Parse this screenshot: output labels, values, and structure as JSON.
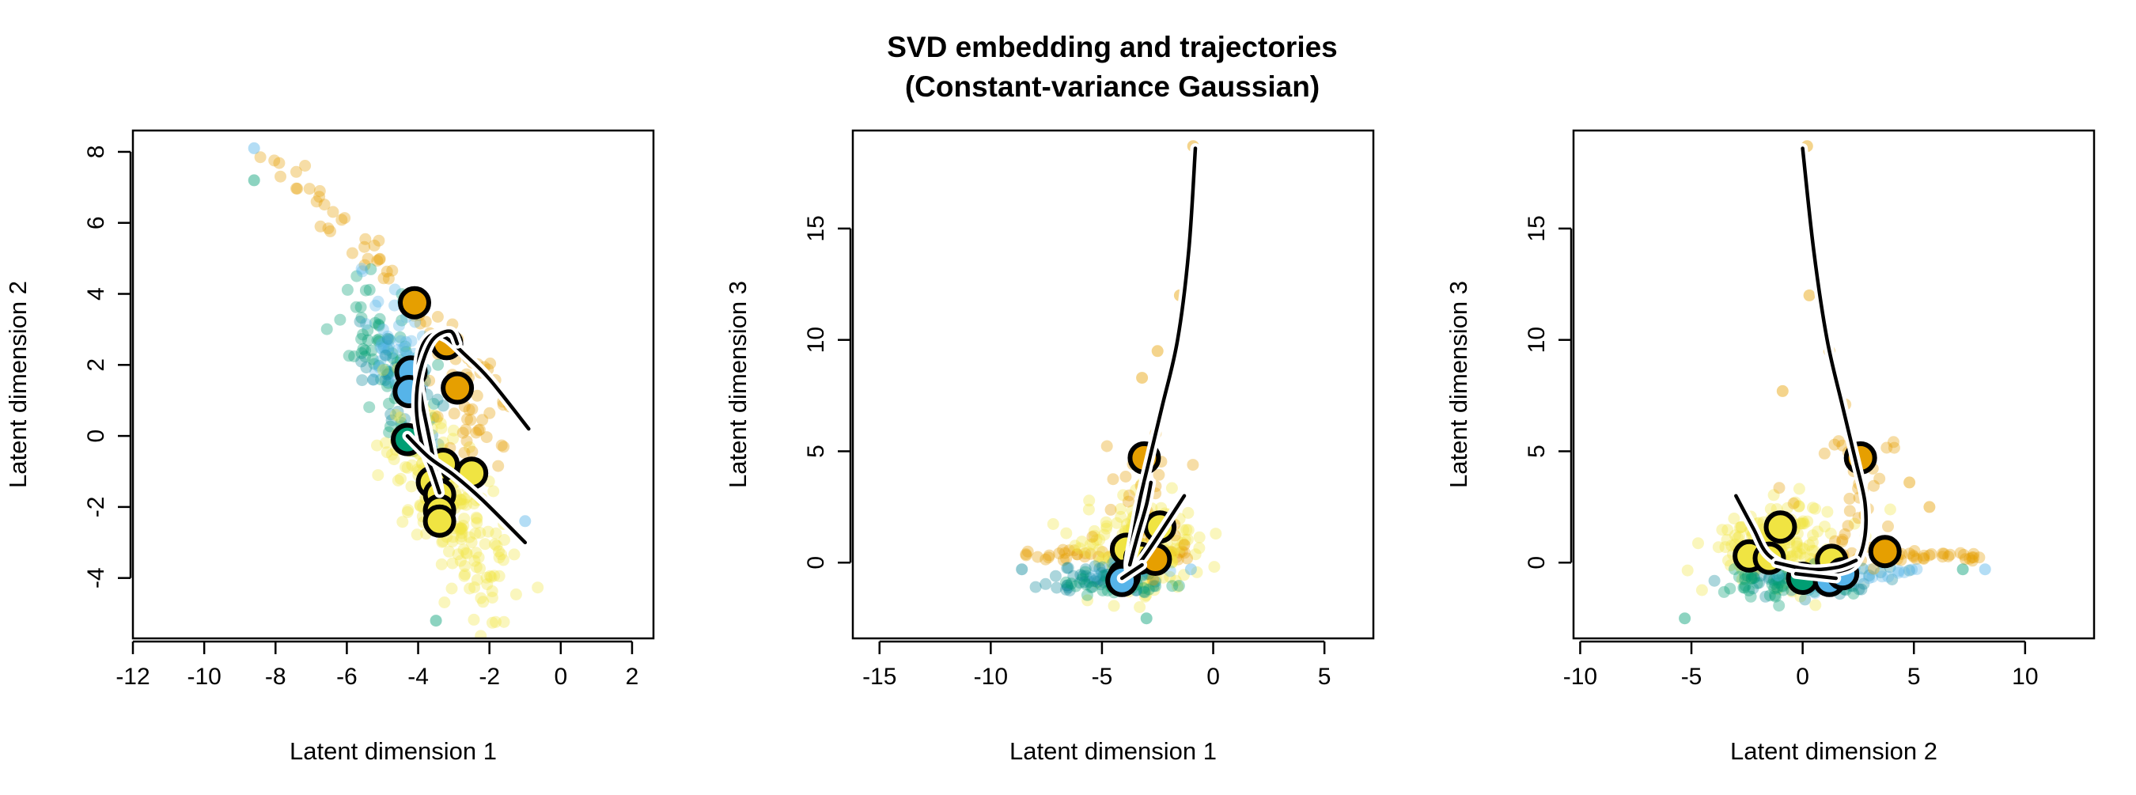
{
  "title_lines": [
    "SVD embedding and trajectories",
    "(Constant-variance Gaussian)"
  ],
  "colors": {
    "orange": "#E69F00",
    "sky_blue": "#56B4E9",
    "green": "#009E73",
    "yellow": "#F0E442",
    "teal": "#0E8A9B",
    "trajectory": "#000000",
    "trajectory_halo": "#ffffff"
  },
  "chart_data": [
    {
      "type": "scatter",
      "xlabel": "Latent dimension 1",
      "ylabel": "Latent dimension 2",
      "xlim": [
        -12,
        2.6
      ],
      "ylim": [
        -5.7,
        8.6
      ],
      "xticks": [
        -12,
        -10,
        -8,
        -6,
        -4,
        -2,
        0,
        2
      ],
      "yticks": [
        -4,
        -2,
        0,
        2,
        4,
        6,
        8
      ],
      "grid": false,
      "point_clouds": [
        {
          "color": "orange",
          "n": 60,
          "line": [
            [
              -8,
              7.9
            ],
            [
              -1,
              0.4
            ]
          ],
          "spread": 0.25
        },
        {
          "color": "green",
          "n": 70,
          "center": [
            -5,
            2.5
          ],
          "sd": [
            0.7,
            1.1
          ],
          "rho": -0.6
        },
        {
          "color": "sky_blue",
          "n": 50,
          "center": [
            -4.6,
            2.4
          ],
          "sd": [
            0.5,
            1.0
          ],
          "rho": -0.5
        },
        {
          "color": "teal",
          "n": 40,
          "center": [
            -4.2,
            1.0
          ],
          "sd": [
            0.6,
            1.0
          ],
          "rho": -0.6
        },
        {
          "color": "yellow",
          "n": 220,
          "center": [
            -3.2,
            -1.8
          ],
          "sd": [
            0.8,
            1.4
          ],
          "rho": -0.7
        },
        {
          "color": "orange",
          "n": 25,
          "center": [
            -2.5,
            0.5
          ],
          "sd": [
            0.5,
            0.7
          ],
          "rho": -0.5
        }
      ],
      "outliers": [
        {
          "x": -8.6,
          "y": 8.1,
          "color": "sky_blue"
        },
        {
          "x": -8.6,
          "y": 7.2,
          "color": "green"
        },
        {
          "x": -1.0,
          "y": -2.4,
          "color": "sky_blue"
        },
        {
          "x": -3.5,
          "y": -5.2,
          "color": "green"
        }
      ],
      "highlighted_points": [
        {
          "x": -4.1,
          "y": 3.75,
          "color": "orange"
        },
        {
          "x": -3.2,
          "y": 2.6,
          "color": "orange"
        },
        {
          "x": -2.9,
          "y": 1.35,
          "color": "orange"
        },
        {
          "x": -4.2,
          "y": 1.8,
          "color": "sky_blue"
        },
        {
          "x": -4.25,
          "y": 1.25,
          "color": "sky_blue"
        },
        {
          "x": -4.3,
          "y": -0.1,
          "color": "green"
        },
        {
          "x": -3.3,
          "y": -0.8,
          "color": "yellow"
        },
        {
          "x": -2.5,
          "y": -1.05,
          "color": "yellow"
        },
        {
          "x": -3.6,
          "y": -1.3,
          "color": "yellow"
        },
        {
          "x": -3.4,
          "y": -1.65,
          "color": "yellow"
        },
        {
          "x": -3.4,
          "y": -2.1,
          "color": "yellow"
        },
        {
          "x": -3.4,
          "y": -2.4,
          "color": "yellow"
        }
      ],
      "trajectories": [
        [
          [
            -3.4,
            -1.6
          ],
          [
            -3.5,
            -1.0
          ],
          [
            -3.7,
            0.0
          ],
          [
            -3.9,
            1.0
          ],
          [
            -4.0,
            1.8
          ],
          [
            -3.9,
            2.5
          ],
          [
            -3.6,
            2.85
          ],
          [
            -3.2,
            2.75
          ],
          [
            -2.7,
            2.3
          ],
          [
            -2.0,
            1.6
          ],
          [
            -0.9,
            0.2
          ]
        ],
        [
          [
            -3.4,
            -1.6
          ],
          [
            -3.6,
            -1.0
          ],
          [
            -3.9,
            -0.2
          ],
          [
            -4.05,
            0.8
          ],
          [
            -3.95,
            1.8
          ],
          [
            -3.6,
            2.7
          ],
          [
            -3.1,
            2.95
          ],
          [
            -2.9,
            2.6
          ]
        ],
        [
          [
            -4.3,
            0.0
          ],
          [
            -3.7,
            -0.6
          ],
          [
            -3.0,
            -1.1
          ],
          [
            -2.2,
            -1.8
          ],
          [
            -1.0,
            -3.0
          ]
        ]
      ]
    },
    {
      "type": "scatter",
      "xlabel": "Latent dimension 1",
      "ylabel": "Latent dimension 3",
      "xlim": [
        -16.2,
        7.2
      ],
      "ylim": [
        -3.4,
        19.4
      ],
      "xticks": [
        -15,
        -10,
        -5,
        0,
        5
      ],
      "yticks": [
        0,
        5,
        10,
        15
      ],
      "grid": false,
      "point_clouds": [
        {
          "color": "orange",
          "n": 45,
          "line": [
            [
              -8.5,
              0.3
            ],
            [
              -1.2,
              0.3
            ]
          ],
          "spread": 0.12
        },
        {
          "color": "yellow",
          "n": 200,
          "center": [
            -3.3,
            0.6
          ],
          "sd": [
            1.1,
            1.0
          ],
          "rho": 0.1
        },
        {
          "color": "teal",
          "n": 70,
          "center": [
            -4.8,
            -0.7
          ],
          "sd": [
            1.2,
            0.35
          ],
          "rho": 0.0
        },
        {
          "color": "green",
          "n": 40,
          "center": [
            -4.6,
            -1.0
          ],
          "sd": [
            1.1,
            0.35
          ],
          "rho": 0.0
        },
        {
          "color": "sky_blue",
          "n": 20,
          "center": [
            -3.8,
            -0.4
          ],
          "sd": [
            0.7,
            0.3
          ],
          "rho": 0.0
        },
        {
          "color": "orange",
          "n": 35,
          "center": [
            -3.0,
            3.0
          ],
          "sd": [
            0.9,
            1.8
          ],
          "rho": 0.0
        }
      ],
      "outliers": [
        {
          "x": -0.9,
          "y": 18.7,
          "color": "orange"
        },
        {
          "x": -1.5,
          "y": 12.0,
          "color": "orange"
        },
        {
          "x": -2.5,
          "y": 9.5,
          "color": "orange"
        },
        {
          "x": -3.2,
          "y": 8.3,
          "color": "orange"
        },
        {
          "x": -8.6,
          "y": -0.3,
          "color": "teal"
        },
        {
          "x": -1.0,
          "y": -0.3,
          "color": "sky_blue"
        },
        {
          "x": -3.0,
          "y": -2.5,
          "color": "green"
        },
        {
          "x": -1.3,
          "y": 0.8,
          "color": "orange"
        }
      ],
      "highlighted_points": [
        {
          "x": -3.1,
          "y": 4.7,
          "color": "orange"
        },
        {
          "x": -2.4,
          "y": 1.6,
          "color": "yellow"
        },
        {
          "x": -3.9,
          "y": 0.6,
          "color": "yellow"
        },
        {
          "x": -3.3,
          "y": 0.2,
          "color": "yellow"
        },
        {
          "x": -2.6,
          "y": 0.15,
          "color": "orange"
        },
        {
          "x": -4.0,
          "y": -0.6,
          "color": "green"
        },
        {
          "x": -4.1,
          "y": -0.8,
          "color": "sky_blue"
        }
      ],
      "trajectories": [
        [
          [
            -0.8,
            18.6
          ],
          [
            -1.1,
            14.0
          ],
          [
            -1.6,
            10.0
          ],
          [
            -2.3,
            7.0
          ],
          [
            -2.9,
            4.5
          ],
          [
            -3.3,
            2.8
          ],
          [
            -3.6,
            1.2
          ],
          [
            -3.8,
            0.0
          ],
          [
            -3.7,
            -0.4
          ],
          [
            -3.3,
            0.0
          ],
          [
            -2.6,
            1.0
          ],
          [
            -1.3,
            3.0
          ]
        ],
        [
          [
            -3.75,
            -0.1
          ],
          [
            -3.4,
            1.2
          ],
          [
            -3.0,
            2.6
          ],
          [
            -2.8,
            3.6
          ]
        ],
        [
          [
            -4.1,
            -0.7
          ],
          [
            -3.2,
            -0.1
          ]
        ]
      ]
    },
    {
      "type": "scatter",
      "xlabel": "Latent dimension 2",
      "ylabel": "Latent dimension 3",
      "xlim": [
        -10.3,
        13.1
      ],
      "ylim": [
        -3.4,
        19.4
      ],
      "xticks": [
        -10,
        -5,
        0,
        5,
        10
      ],
      "yticks": [
        0,
        5,
        10,
        15
      ],
      "grid": false,
      "point_clouds": [
        {
          "color": "orange",
          "n": 45,
          "line": [
            [
              0.5,
              0.3
            ],
            [
              7.8,
              0.3
            ]
          ],
          "spread": 0.12
        },
        {
          "color": "yellow",
          "n": 200,
          "center": [
            -1.2,
            0.6
          ],
          "sd": [
            1.4,
            1.0
          ],
          "rho": 0.0
        },
        {
          "color": "teal",
          "n": 60,
          "center": [
            0.5,
            -0.7
          ],
          "sd": [
            1.8,
            0.35
          ],
          "rho": 0.0
        },
        {
          "color": "green",
          "n": 40,
          "center": [
            -1.0,
            -1.0
          ],
          "sd": [
            1.6,
            0.35
          ],
          "rho": 0.0
        },
        {
          "color": "sky_blue",
          "n": 25,
          "center": [
            2.5,
            -0.4
          ],
          "sd": [
            1.4,
            0.3
          ],
          "rho": 0.0
        },
        {
          "color": "orange",
          "n": 35,
          "center": [
            2.3,
            3.0
          ],
          "sd": [
            1.1,
            1.8
          ],
          "rho": 0.0
        }
      ],
      "outliers": [
        {
          "x": 0.2,
          "y": 18.7,
          "color": "orange"
        },
        {
          "x": 0.3,
          "y": 12.0,
          "color": "orange"
        },
        {
          "x": 1.2,
          "y": 9.5,
          "color": "orange"
        },
        {
          "x": -0.9,
          "y": 7.7,
          "color": "orange"
        },
        {
          "x": 8.2,
          "y": -0.3,
          "color": "sky_blue"
        },
        {
          "x": 7.2,
          "y": -0.3,
          "color": "green"
        },
        {
          "x": -5.3,
          "y": -2.5,
          "color": "green"
        },
        {
          "x": 5.7,
          "y": 2.5,
          "color": "orange"
        },
        {
          "x": 4.8,
          "y": 3.6,
          "color": "orange"
        }
      ],
      "highlighted_points": [
        {
          "x": 2.6,
          "y": 4.7,
          "color": "orange"
        },
        {
          "x": 3.7,
          "y": 0.5,
          "color": "orange"
        },
        {
          "x": -1.0,
          "y": 1.6,
          "color": "yellow"
        },
        {
          "x": -2.4,
          "y": 0.3,
          "color": "yellow"
        },
        {
          "x": -1.5,
          "y": 0.2,
          "color": "yellow"
        },
        {
          "x": 1.3,
          "y": 0.1,
          "color": "yellow"
        },
        {
          "x": 0.0,
          "y": -0.7,
          "color": "green"
        },
        {
          "x": 1.2,
          "y": -0.8,
          "color": "sky_blue"
        },
        {
          "x": 1.8,
          "y": -0.5,
          "color": "sky_blue"
        }
      ],
      "trajectories": [
        [
          [
            0.0,
            18.6
          ],
          [
            0.5,
            14.0
          ],
          [
            1.1,
            10.0
          ],
          [
            1.8,
            7.0
          ],
          [
            2.4,
            4.5
          ],
          [
            2.8,
            2.7
          ],
          [
            2.8,
            1.2
          ],
          [
            2.4,
            0.0
          ],
          [
            1.6,
            -0.4
          ],
          [
            0.5,
            -0.4
          ],
          [
            -0.6,
            -0.2
          ],
          [
            -1.6,
            0.4
          ],
          [
            -2.2,
            1.5
          ],
          [
            -3.0,
            3.0
          ]
        ],
        [
          [
            -1.2,
            0.0
          ],
          [
            0.3,
            -0.3
          ],
          [
            1.6,
            -0.2
          ],
          [
            2.4,
            0.1
          ]
        ],
        [
          [
            -0.3,
            -0.5
          ],
          [
            0.6,
            -0.6
          ],
          [
            1.5,
            -0.7
          ]
        ]
      ]
    }
  ]
}
